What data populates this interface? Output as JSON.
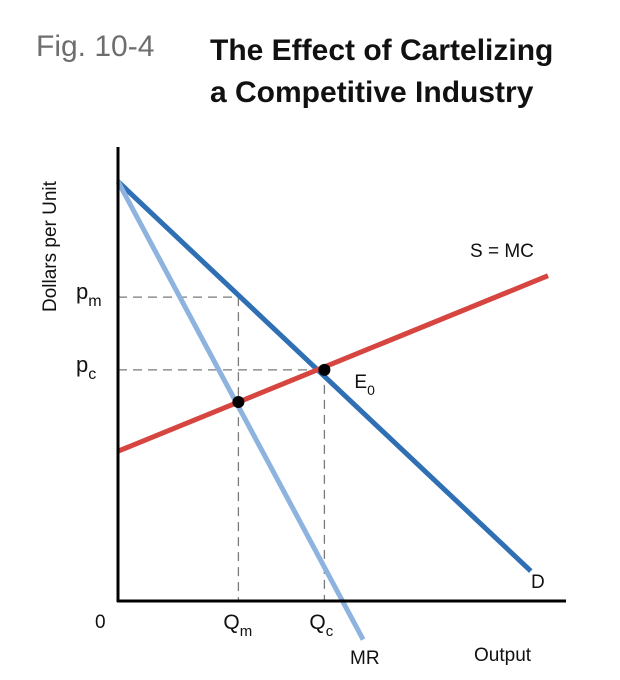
{
  "figure": {
    "label": "Fig. 10-4",
    "title_line1": "The Effect of Cartelizing",
    "title_line2": "a Competitive Industry"
  },
  "colors": {
    "demand": "#2f6fb4",
    "mr": "#8db3de",
    "supply": "#d6453f",
    "axis": "#000000",
    "guide": "#7a7a7a"
  },
  "chart_data": {
    "type": "line",
    "title": "The Effect of Cartelizing a Competitive Industry",
    "xlabel": "Output",
    "ylabel": "Dollars per Unit",
    "xlim": [
      0,
      10
    ],
    "ylim": [
      0,
      10
    ],
    "origin_label": "0",
    "series": [
      {
        "name": "D",
        "label": "D",
        "points": [
          [
            0,
            9.8
          ],
          [
            9.6,
            0.7
          ]
        ]
      },
      {
        "name": "MR",
        "label": "MR",
        "points": [
          [
            0,
            9.8
          ],
          [
            5.7,
            -0.9
          ]
        ]
      },
      {
        "name": "S = MC",
        "label": "S = MC",
        "points": [
          [
            0,
            3.5
          ],
          [
            10.0,
            7.6
          ]
        ]
      }
    ],
    "points": [
      {
        "name": "monopoly",
        "x": 2.8,
        "y": 4.65
      },
      {
        "name": "competitive",
        "x": 4.8,
        "y": 5.4,
        "label": "E",
        "label_sub": "0"
      }
    ],
    "price_ticks": [
      {
        "name": "pm",
        "text": "p",
        "sub": "m",
        "y": 7.1
      },
      {
        "name": "pc",
        "text": "p",
        "sub": "c",
        "y": 5.4
      }
    ],
    "quantity_ticks": [
      {
        "name": "qm",
        "text": "Q",
        "sub": "m",
        "x": 2.8
      },
      {
        "name": "qc",
        "text": "Q",
        "sub": "c",
        "x": 4.8
      }
    ],
    "guide_lines": [
      {
        "name": "pm-guide",
        "x": 2.8,
        "y": 7.1
      },
      {
        "name": "pc-guide",
        "x": 4.8,
        "y": 5.4
      }
    ]
  }
}
